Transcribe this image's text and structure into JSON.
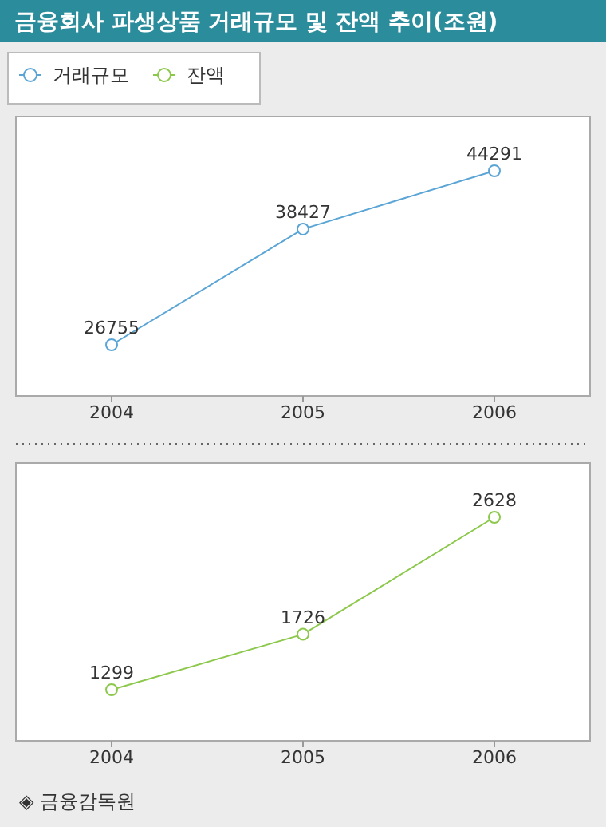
{
  "chart_data": [
    {
      "type": "line",
      "title": "금융회사 파생상품 거래규모 및 잔액 추이(조원)",
      "categories": [
        "2004",
        "2005",
        "2006"
      ],
      "series": [
        {
          "name": "거래규모",
          "color": "#5aa5d6",
          "values": [
            26755,
            38427,
            44291
          ]
        }
      ],
      "marker": "circle",
      "data_labels": true,
      "legend": "top left"
    },
    {
      "type": "line",
      "categories": [
        "2004",
        "2005",
        "2006"
      ],
      "series": [
        {
          "name": "잔액",
          "color": "#8cc84b",
          "values": [
            1299,
            1726,
            2628
          ]
        }
      ],
      "marker": "circle",
      "data_labels": true,
      "annotations": [
        "◈ 금융감독원"
      ]
    }
  ]
}
